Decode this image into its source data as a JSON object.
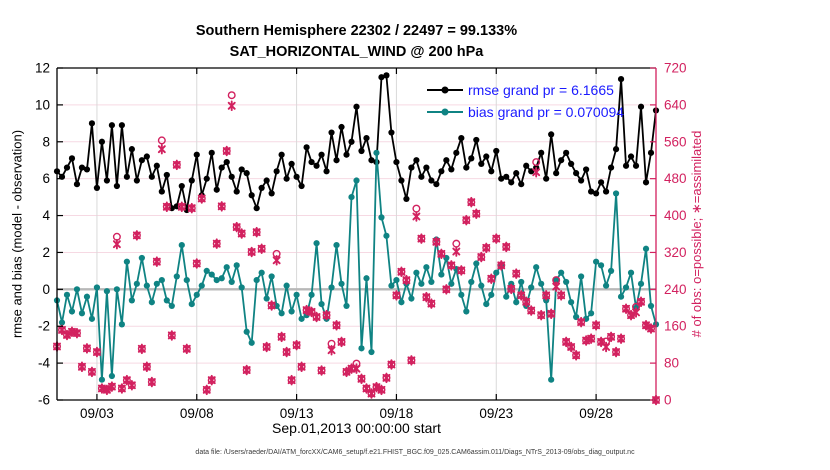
{
  "figure": {
    "title_line1": "Southern Hemisphere 22302 / 22497 = 99.133%",
    "title_line2": "SAT_HORIZONTAL_WIND @ 200 hPa",
    "xlabel": "Sep.01,2013 00:00:00 start",
    "ylabel_left": "rmse and bias (model - observation)",
    "ylabel_right": "# of obs: o=possible; ∗=assimilated",
    "datafile_note": "data file: /Users/raeder/DAI/ATM_forcXX/CAM6_setup/f.e21.FHIST_BGC.f09_025.CAM6assim.011/Diags_NTrS_2013-09/obs_diag_output.nc",
    "legend": {
      "rmse_label": "rmse grand pr = 6.1665",
      "bias_label": "bias grand pr = 0.070094",
      "text_color": "#1a1aff"
    }
  },
  "chart_data": {
    "type": "line",
    "title": "Southern Hemisphere 22302 / 22497 = 99.133% | SAT_HORIZONTAL_WIND @ 200 hPa",
    "x_axis": {
      "start_label": "Sep.01,2013 00:00:00 start",
      "range_days": [
        0,
        30
      ],
      "step_days": 0.25,
      "ticks": [
        {
          "t": 2,
          "label": "09/03"
        },
        {
          "t": 7,
          "label": "09/08"
        },
        {
          "t": 12,
          "label": "09/13"
        },
        {
          "t": 17,
          "label": "09/18"
        },
        {
          "t": 22,
          "label": "09/23"
        },
        {
          "t": 27,
          "label": "09/28"
        }
      ]
    },
    "y_left": {
      "label": "rmse and bias (model - observation)",
      "min": -6,
      "max": 12,
      "tick_step": 2,
      "ticks": [
        -6,
        -4,
        -2,
        0,
        2,
        4,
        6,
        8,
        10,
        12
      ]
    },
    "y_right": {
      "label": "# of obs: o=possible; ∗=assimilated",
      "min": 0,
      "max": 720,
      "tick_step": 80,
      "ticks": [
        0,
        80,
        160,
        240,
        320,
        400,
        480,
        560,
        640,
        720
      ]
    },
    "colors": {
      "rmse": "#000000",
      "bias": "#0f8383",
      "obs": "#d2215f",
      "grid_h": "#f6d9e3",
      "grid_v": "#d9d9d9",
      "zero_line": "#b8b8b8",
      "legend_text": "#1a1aff"
    },
    "series": [
      {
        "name": "rmse",
        "grand_pr": 6.1665,
        "axis": "left",
        "values": [
          6.4,
          6.1,
          6.6,
          7.1,
          5.7,
          6.6,
          6.5,
          9.0,
          5.5,
          8.0,
          5.9,
          8.9,
          5.6,
          8.9,
          6.1,
          7.6,
          5.9,
          7.0,
          7.2,
          6.1,
          6.7,
          5.3,
          6.2,
          4.4,
          4.5,
          5.6,
          4.3,
          5.9,
          7.3,
          5.1,
          6.0,
          7.4,
          5.4,
          6.6,
          6.9,
          6.1,
          5.3,
          6.5,
          6.3,
          5.1,
          4.4,
          5.5,
          5.9,
          5.2,
          6.4,
          7.3,
          6.0,
          6.8,
          6.1,
          5.6,
          7.7,
          6.9,
          6.7,
          7.3,
          6.4,
          8.5,
          7.0,
          8.8,
          7.3,
          8.0,
          9.9,
          7.5,
          8.2,
          7.0,
          6.9,
          11.5,
          11.6,
          8.5,
          6.9,
          5.9,
          4.9,
          6.6,
          7.0,
          6.1,
          6.6,
          5.9,
          5.7,
          6.4,
          7.0,
          6.5,
          7.4,
          8.2,
          6.6,
          7.1,
          8.1,
          6.8,
          7.2,
          6.4,
          7.5,
          6.0,
          6.1,
          5.8,
          6.3,
          5.7,
          6.7,
          6.4,
          6.6,
          7.4,
          6.0,
          8.4,
          6.3,
          7.0,
          7.4,
          6.8,
          6.3,
          5.9,
          6.5,
          5.3,
          5.2,
          5.8,
          5.3,
          6.6,
          7.6,
          11.4,
          6.7,
          7.2,
          6.7,
          9.9,
          5.8,
          7.4,
          9.7
        ]
      },
      {
        "name": "bias",
        "grand_pr": 0.070094,
        "axis": "left",
        "values": [
          -0.6,
          -1.8,
          -0.3,
          -1.2,
          0.0,
          -1.3,
          -0.4,
          -1.6,
          0.1,
          -4.9,
          -0.1,
          -4.7,
          0.0,
          -1.9,
          1.5,
          -0.6,
          0.3,
          1.7,
          0.2,
          -0.7,
          0.3,
          0.5,
          -0.6,
          -0.9,
          0.7,
          2.4,
          0.5,
          -0.8,
          -0.3,
          0.2,
          1.0,
          0.8,
          0.5,
          0.6,
          1.2,
          0.4,
          1.3,
          0.1,
          -2.3,
          -2.9,
          0.5,
          0.9,
          -0.5,
          0.7,
          -0.9,
          -1.3,
          0.2,
          -1.2,
          -0.3,
          -1.6,
          -1.4,
          -0.3,
          2.5,
          -0.8,
          -1.6,
          0.1,
          2.4,
          0.3,
          -0.9,
          5.0,
          5.9,
          -3.2,
          0.6,
          -3.4,
          7.4,
          3.9,
          2.9,
          0.2,
          0.5,
          -0.7,
          0.3,
          -0.5,
          0.9,
          0.3,
          1.2,
          0.4,
          2.7,
          0.8,
          1.7,
          0.3,
          1.1,
          -0.3,
          -1.2,
          0.4,
          1.4,
          0.2,
          -0.8,
          -0.3,
          0.9,
          1.3,
          -0.4,
          0.3,
          -0.7,
          0.4,
          -0.9,
          0.1,
          1.2,
          0.3,
          -0.6,
          -4.9,
          0.5,
          0.9,
          0.4,
          -0.7,
          -1.5,
          0.7,
          -1.6,
          -1.3,
          1.5,
          1.3,
          0.2,
          1.0,
          5.2,
          -0.4,
          0.1,
          0.9,
          -1.0,
          0.3,
          2.2,
          -0.9,
          -1.9
        ]
      }
    ],
    "obs_counts": {
      "axis": "right",
      "possible": [
        116,
        152,
        141,
        148,
        145,
        72,
        112,
        61,
        104,
        25,
        22,
        29,
        354,
        25,
        43,
        32,
        357,
        111,
        72,
        39,
        300,
        563,
        419,
        140,
        510,
        419,
        111,
        416,
        296,
        437,
        22,
        43,
        339,
        420,
        540,
        661,
        375,
        361,
        65,
        321,
        364,
        328,
        115,
        205,
        317,
        137,
        104,
        43,
        119,
        72,
        195,
        191,
        180,
        64,
        184,
        122,
        162,
        126,
        61,
        68,
        79,
        46,
        25,
        14,
        28,
        22,
        48,
        77,
        227,
        278,
        260,
        86,
        415,
        350,
        223,
        209,
        343,
        317,
        240,
        292,
        339,
        281,
        390,
        429,
        404,
        310,
        330,
        263,
        350,
        292,
        332,
        241,
        274,
        227,
        213,
        194,
        516,
        184,
        227,
        187,
        260,
        227,
        126,
        115,
        97,
        169,
        129,
        133,
        162,
        126,
        127,
        137,
        104,
        133,
        198,
        184,
        202,
        213,
        162,
        155,
        0
      ],
      "assimilated": [
        116,
        152,
        141,
        148,
        145,
        72,
        112,
        61,
        104,
        25,
        22,
        29,
        338,
        25,
        43,
        32,
        357,
        111,
        72,
        39,
        300,
        544,
        419,
        140,
        510,
        419,
        111,
        416,
        296,
        437,
        22,
        43,
        339,
        420,
        540,
        638,
        375,
        361,
        65,
        321,
        364,
        328,
        115,
        205,
        303,
        137,
        104,
        43,
        119,
        72,
        195,
        191,
        180,
        64,
        184,
        108,
        162,
        126,
        61,
        68,
        68,
        46,
        25,
        14,
        28,
        22,
        48,
        77,
        227,
        278,
        260,
        86,
        398,
        350,
        223,
        209,
        343,
        317,
        240,
        292,
        322,
        281,
        390,
        429,
        404,
        310,
        330,
        263,
        350,
        292,
        332,
        241,
        274,
        227,
        213,
        194,
        494,
        184,
        227,
        187,
        246,
        227,
        126,
        115,
        97,
        169,
        129,
        133,
        162,
        126,
        115,
        137,
        104,
        133,
        198,
        184,
        190,
        213,
        162,
        155,
        0
      ]
    }
  }
}
